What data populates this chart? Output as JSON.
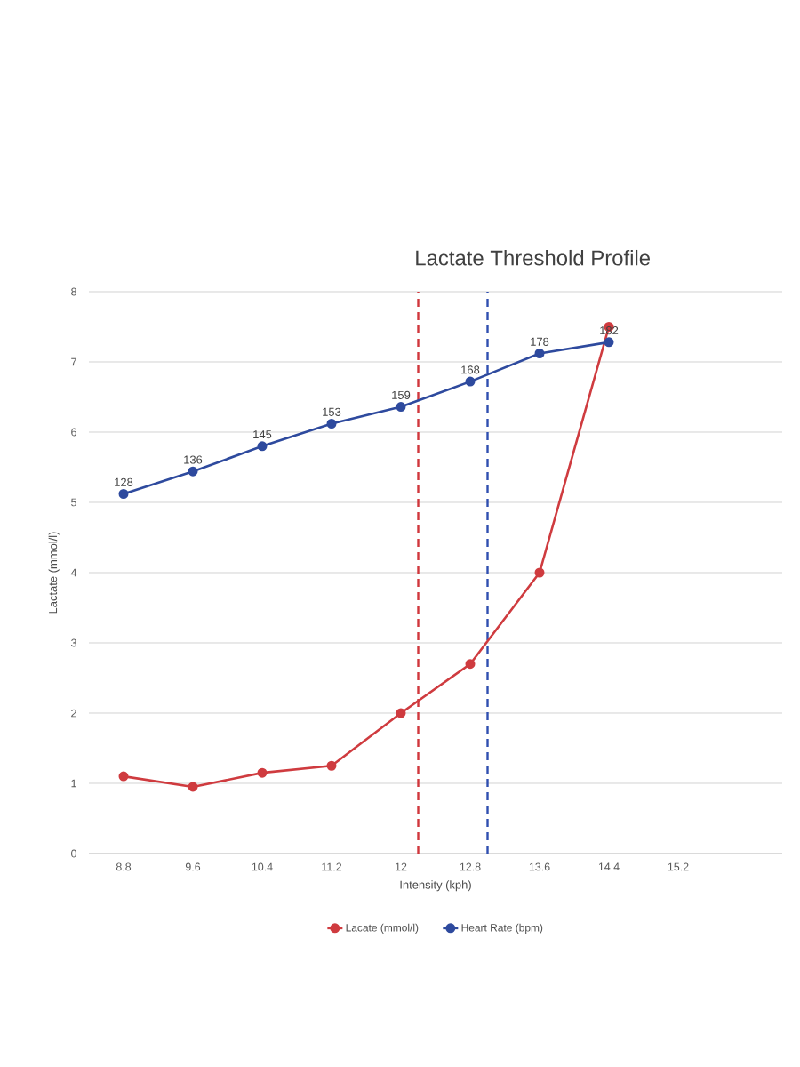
{
  "chart_data": {
    "type": "line",
    "title": "Lactate Threshold Profile",
    "xlabel": "Intensity (kph)",
    "ylabel": "Lactate (mmol/l)",
    "x": [
      8.8,
      9.6,
      10.4,
      11.2,
      12,
      12.8,
      13.6,
      14.4
    ],
    "series": [
      {
        "name": "Lacate (mmol/l)",
        "color": "#cf3b3f",
        "values": [
          1.1,
          0.95,
          1.15,
          1.25,
          2,
          2.7,
          4,
          7.5
        ]
      },
      {
        "name": "Heart Rate (bpm)",
        "color": "#2e4a9e",
        "axis": "y2",
        "data_labels": true,
        "values": [
          128,
          136,
          145,
          153,
          159,
          168,
          178,
          182
        ]
      }
    ],
    "xlim": [
      8.4,
      16.4
    ],
    "xticks": [
      8.8,
      9.6,
      10.4,
      11.2,
      12,
      12.8,
      13.6,
      14.4,
      15.2
    ],
    "ylim": [
      0,
      8
    ],
    "yticks": [
      0,
      1,
      2,
      3,
      4,
      5,
      6,
      7,
      8
    ],
    "y2lim": [
      0,
      200
    ],
    "ref_lines": [
      {
        "axis": "x",
        "value": 12.2,
        "color": "#d0373c",
        "line_style": "dashed"
      },
      {
        "axis": "x",
        "value": 13,
        "color": "#2f4fb0",
        "line_style": "dashed"
      }
    ],
    "grid": "y",
    "legend": "bottom",
    "marker": "circle"
  }
}
